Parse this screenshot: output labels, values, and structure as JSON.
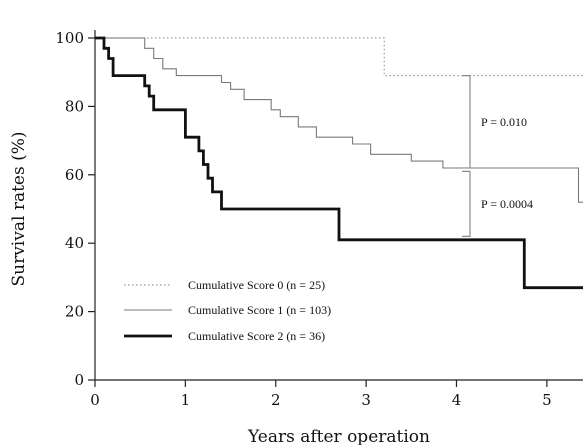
{
  "chart_data": {
    "type": "line",
    "xlabel": "Years after operation",
    "ylabel": "Survival rates (%)",
    "xlim": [
      0,
      5.4
    ],
    "ylim": [
      0,
      100
    ],
    "xticks": [
      "0",
      "1",
      "2",
      "3",
      "4",
      "5"
    ],
    "yticks": [
      "0",
      "20",
      "40",
      "60",
      "80",
      "100"
    ],
    "grid": false,
    "legend_position": "bottom-left",
    "series": [
      {
        "name": "Cumulative Score 0  (n = 25)",
        "style": "dotted",
        "color": "#9a9a9a",
        "points": [
          [
            0,
            100
          ],
          [
            3.2,
            100
          ],
          [
            3.2,
            89
          ],
          [
            5.4,
            89
          ]
        ]
      },
      {
        "name": "Cumulative Score 1  (n = 103)",
        "style": "thin",
        "color": "#7a7a7a",
        "points": [
          [
            0,
            100
          ],
          [
            0.55,
            100
          ],
          [
            0.55,
            97
          ],
          [
            0.65,
            97
          ],
          [
            0.65,
            94
          ],
          [
            0.75,
            94
          ],
          [
            0.75,
            91
          ],
          [
            0.9,
            91
          ],
          [
            0.9,
            89
          ],
          [
            1.4,
            89
          ],
          [
            1.4,
            87
          ],
          [
            1.5,
            87
          ],
          [
            1.5,
            85
          ],
          [
            1.65,
            85
          ],
          [
            1.65,
            82
          ],
          [
            1.95,
            82
          ],
          [
            1.95,
            79
          ],
          [
            2.05,
            79
          ],
          [
            2.05,
            77
          ],
          [
            2.25,
            77
          ],
          [
            2.25,
            74
          ],
          [
            2.45,
            74
          ],
          [
            2.45,
            71
          ],
          [
            2.85,
            71
          ],
          [
            2.85,
            69
          ],
          [
            3.05,
            69
          ],
          [
            3.05,
            66
          ],
          [
            3.5,
            66
          ],
          [
            3.5,
            64
          ],
          [
            3.85,
            64
          ],
          [
            3.85,
            62
          ],
          [
            5.35,
            62
          ],
          [
            5.35,
            52
          ],
          [
            5.4,
            52
          ]
        ]
      },
      {
        "name": "Cumulative Score 2  (n = 36)",
        "style": "thick",
        "color": "#111111",
        "points": [
          [
            0,
            100
          ],
          [
            0.1,
            100
          ],
          [
            0.1,
            97
          ],
          [
            0.15,
            97
          ],
          [
            0.15,
            94
          ],
          [
            0.2,
            94
          ],
          [
            0.2,
            89
          ],
          [
            0.55,
            89
          ],
          [
            0.55,
            86
          ],
          [
            0.6,
            86
          ],
          [
            0.6,
            83
          ],
          [
            0.65,
            83
          ],
          [
            0.65,
            79
          ],
          [
            1.0,
            79
          ],
          [
            1.0,
            71
          ],
          [
            1.15,
            71
          ],
          [
            1.15,
            67
          ],
          [
            1.2,
            67
          ],
          [
            1.2,
            63
          ],
          [
            1.25,
            63
          ],
          [
            1.25,
            59
          ],
          [
            1.3,
            59
          ],
          [
            1.3,
            55
          ],
          [
            1.4,
            55
          ],
          [
            1.4,
            50
          ],
          [
            2.7,
            50
          ],
          [
            2.7,
            41
          ],
          [
            4.75,
            41
          ],
          [
            4.75,
            27
          ],
          [
            5.4,
            27
          ]
        ]
      }
    ],
    "annotations": [
      {
        "text": "P = 0.010",
        "x_anchor": 4.15,
        "y_top": 89,
        "y_bottom": 62
      },
      {
        "text": "P = 0.0004",
        "x_anchor": 4.15,
        "y_top": 61,
        "y_bottom": 42
      }
    ]
  }
}
